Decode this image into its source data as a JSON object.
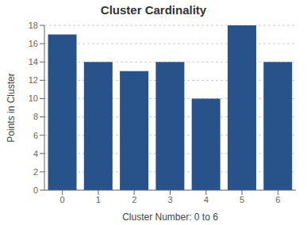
{
  "chart_data": {
    "type": "bar",
    "title": "Cluster Cardinality",
    "xlabel": "Cluster Number: 0 to 6",
    "ylabel": "Points in Cluster",
    "categories": [
      "0",
      "1",
      "2",
      "3",
      "4",
      "5",
      "6"
    ],
    "values": [
      17,
      14,
      13,
      14,
      10,
      18,
      14
    ],
    "color": "#27528a",
    "ylim": [
      0,
      18
    ],
    "yticks": [
      0,
      2,
      4,
      6,
      8,
      10,
      12,
      14,
      16,
      18
    ],
    "grid": true
  }
}
